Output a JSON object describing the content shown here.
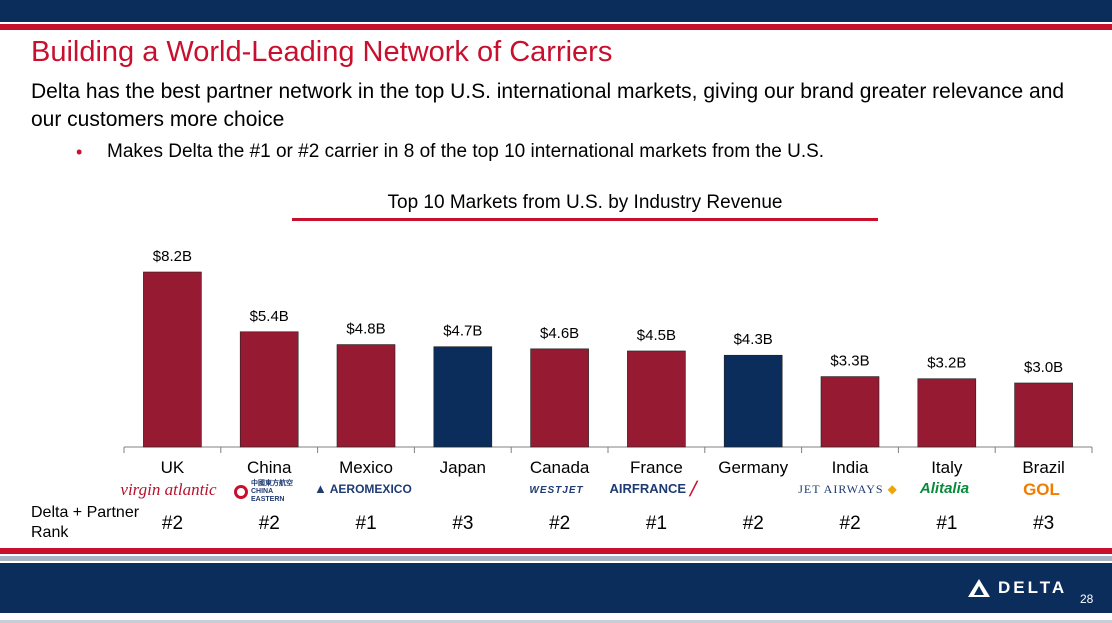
{
  "header": {
    "title": "Building a World-Leading Network of Carriers",
    "subtitle": "Delta has the best partner network in the top U.S. international markets, giving our brand greater relevance and our customers more choice",
    "bullet": "Makes Delta the #1 or #2 carrier in 8 of the top 10 international markets from the U.S."
  },
  "chart_data": {
    "type": "bar",
    "title": "Top 10 Markets from U.S. by Industry Revenue",
    "categories": [
      "UK",
      "China",
      "Mexico",
      "Japan",
      "Canada",
      "France",
      "Germany",
      "India",
      "Italy",
      "Brazil"
    ],
    "values": [
      8.2,
      5.4,
      4.8,
      4.7,
      4.6,
      4.5,
      4.3,
      3.3,
      3.2,
      3.0
    ],
    "value_labels": [
      "$8.2B",
      "$5.4B",
      "$4.8B",
      "$4.7B",
      "$4.6B",
      "$4.5B",
      "$4.3B",
      "$3.3B",
      "$3.2B",
      "$3.0B"
    ],
    "bar_colors": [
      "#961a32",
      "#961a32",
      "#961a32",
      "#0b2d5b",
      "#961a32",
      "#961a32",
      "#0b2d5b",
      "#961a32",
      "#961a32",
      "#961a32"
    ],
    "unit": "USD billions",
    "xlabel": "",
    "ylabel": "",
    "ylim": [
      0,
      8.2
    ],
    "grid": false
  },
  "partners": [
    "virgin atlantic",
    "中國東方航空 CHINA EASTERN",
    "AEROMEXICO",
    "",
    "WESTJET",
    "AIRFRANCE",
    "",
    "JET AIRWAYS",
    "Alitalia",
    "GOL"
  ],
  "rank_label": "Delta + Partner Rank",
  "ranks": [
    "#2",
    "#2",
    "#1",
    "#3",
    "#2",
    "#1",
    "#2",
    "#2",
    "#1",
    "#3"
  ],
  "footer": {
    "brand": "DELTA",
    "page": "28"
  },
  "colors": {
    "accent_red": "#c8102e",
    "bar_red": "#961a32",
    "navy": "#0b2d5b"
  }
}
